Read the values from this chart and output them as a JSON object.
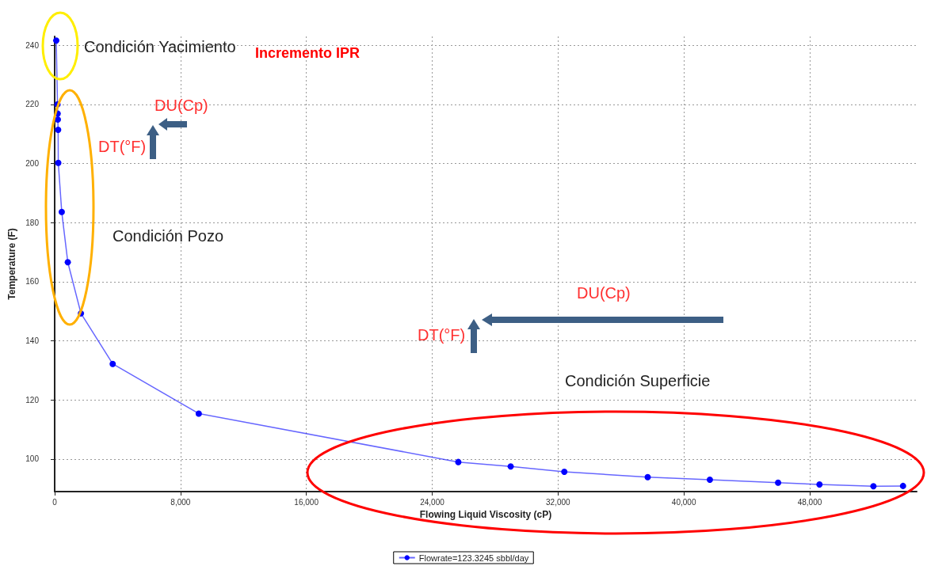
{
  "chart_data": {
    "type": "line",
    "xlabel": "Flowing Liquid Viscosity (cP)",
    "ylabel": "Temperature (F)",
    "x": [
      100,
      180,
      190,
      200,
      220,
      230,
      450,
      835,
      1670,
      3690,
      9160,
      25660,
      28990,
      32400,
      37700,
      41650,
      45990,
      48620,
      52050,
      53930
    ],
    "series": [
      {
        "name": "Flowrate=123.3245 sbbl/day",
        "color": "#0000ff",
        "values": [
          241.6,
          220.0,
          216.9,
          214.9,
          211.4,
          200.2,
          183.6,
          166.6,
          149.3,
          132.2,
          115.4,
          99.0,
          97.5,
          95.7,
          93.9,
          93.0,
          92.0,
          91.4,
          90.8,
          90.9
        ]
      }
    ],
    "xlim": [
      0,
      54800
    ],
    "ylim": [
      89,
      243
    ],
    "xticks": [
      0,
      {
        "value": 8000,
        "label": "8,000"
      },
      {
        "value": 16000,
        "label": "16,000"
      },
      {
        "value": 24000,
        "label": "24,000"
      },
      {
        "value": 32000,
        "label": "32,000"
      },
      {
        "value": 40000,
        "label": "40,000"
      },
      {
        "value": 48000,
        "label": "48,000"
      }
    ],
    "yticks": [
      100,
      120,
      140,
      160,
      180,
      200,
      220,
      240
    ],
    "grid": true,
    "legend": "bottom",
    "marker": "circle",
    "line_style": "solid",
    "annotations": [
      "Condición Yacimiento",
      "Incremento IPR",
      "DU(Cp)",
      "DT(°F)",
      "Condición Pozo",
      "DU(Cp)",
      "DT(°F)",
      "Condición Superficie"
    ]
  }
}
